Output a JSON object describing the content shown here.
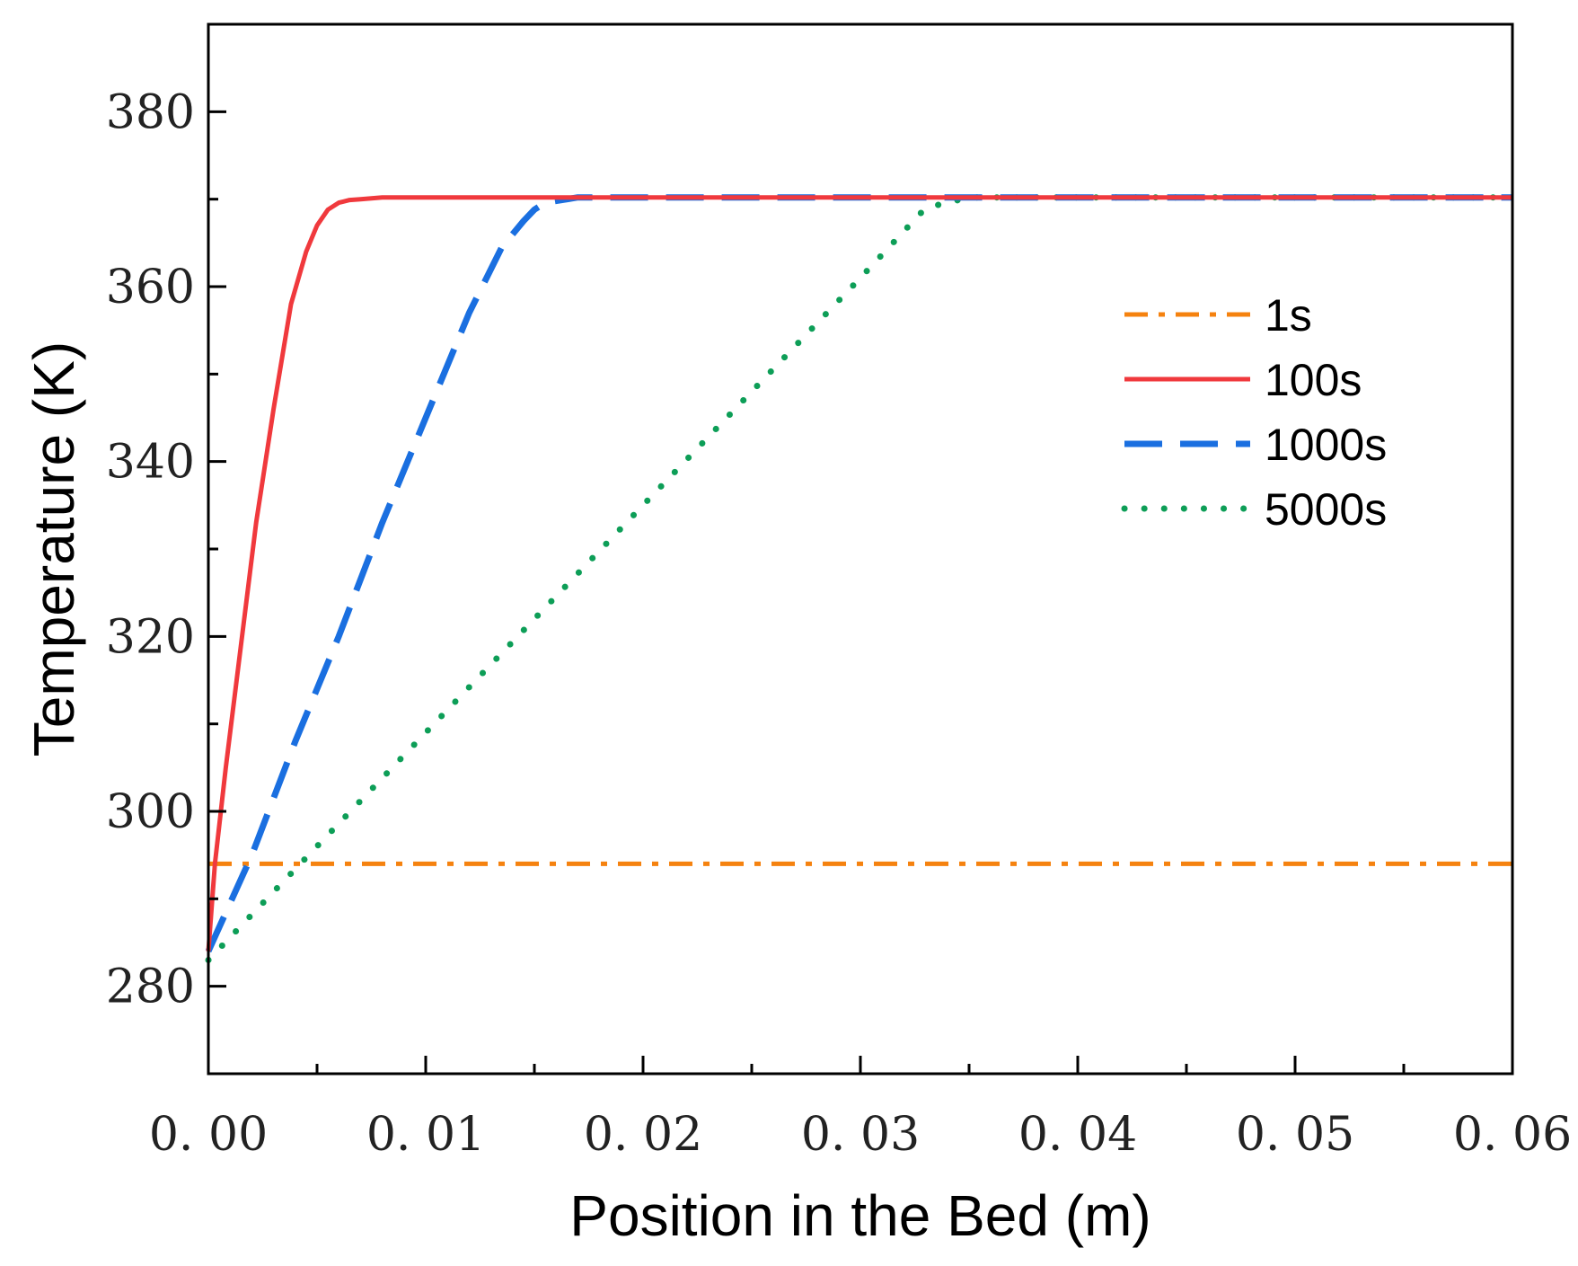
{
  "chart_data": {
    "type": "line",
    "title": "",
    "xlabel": "Position in the Bed (m)",
    "ylabel": "Temperature (K)",
    "xlim": [
      0.0,
      0.06
    ],
    "ylim": [
      270,
      390
    ],
    "x_ticks": [
      0.0,
      0.01,
      0.02,
      0.03,
      0.04,
      0.05,
      0.06
    ],
    "x_tick_labels": [
      "0. 00",
      "0. 01",
      "0. 02",
      "0. 03",
      "0. 04",
      "0. 05",
      "0. 06"
    ],
    "y_ticks": [
      280,
      300,
      320,
      340,
      360,
      380
    ],
    "y_tick_labels": [
      "280",
      "300",
      "320",
      "340",
      "360",
      "380"
    ],
    "grid": false,
    "legend_position": "right",
    "series": [
      {
        "name": "1s",
        "color": "#f5820f",
        "style": "dashdot",
        "x": [
          0.0,
          0.06
        ],
        "y": [
          294,
          294
        ]
      },
      {
        "name": "100s",
        "color": "#f0393d",
        "style": "solid",
        "x": [
          0.0,
          0.0003,
          0.0008,
          0.0015,
          0.0022,
          0.003,
          0.0038,
          0.0045,
          0.005,
          0.0055,
          0.006,
          0.0065,
          0.007,
          0.008,
          0.06
        ],
        "y": [
          284,
          294,
          305,
          319,
          333,
          346,
          358,
          364,
          367,
          368.8,
          369.6,
          369.9,
          370,
          370.2,
          370.2
        ]
      },
      {
        "name": "1000s",
        "color": "#1a6fe0",
        "style": "dashed",
        "x": [
          0.0,
          0.002,
          0.004,
          0.006,
          0.008,
          0.01,
          0.012,
          0.0135,
          0.0145,
          0.015,
          0.0155,
          0.017,
          0.06
        ],
        "y": [
          284,
          295,
          308,
          320,
          333,
          345,
          357,
          364.5,
          367.5,
          368.8,
          369.6,
          370.2,
          370.2
        ]
      },
      {
        "name": "5000s",
        "color": "#0d9e57",
        "style": "dotted",
        "x": [
          0.0,
          0.005,
          0.01,
          0.015,
          0.02,
          0.025,
          0.03,
          0.033,
          0.035,
          0.06
        ],
        "y": [
          283,
          296,
          309,
          322,
          335,
          348,
          361,
          369,
          370.2,
          370.2
        ]
      }
    ]
  }
}
